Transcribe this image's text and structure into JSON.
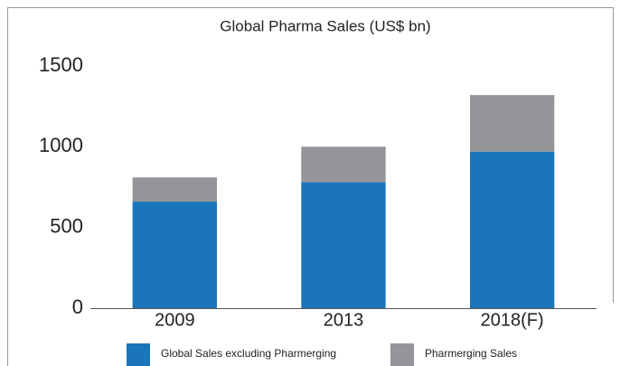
{
  "chart_data": {
    "type": "stacked_bar",
    "title": "Global Pharma Sales (US$ bn)",
    "categories": [
      "2009",
      "2013",
      "2018(F)"
    ],
    "series": [
      {
        "name": "Global Sales excluding Pharmerging",
        "color": "#1a75bb",
        "values": [
          660,
          780,
          970
        ]
      },
      {
        "name": "Pharmerging Sales",
        "color": "#939598",
        "values": [
          150,
          220,
          350
        ]
      }
    ],
    "ylim": [
      0,
      1500
    ],
    "yticks": [
      0,
      500,
      1000,
      1500
    ],
    "grid": false
  }
}
